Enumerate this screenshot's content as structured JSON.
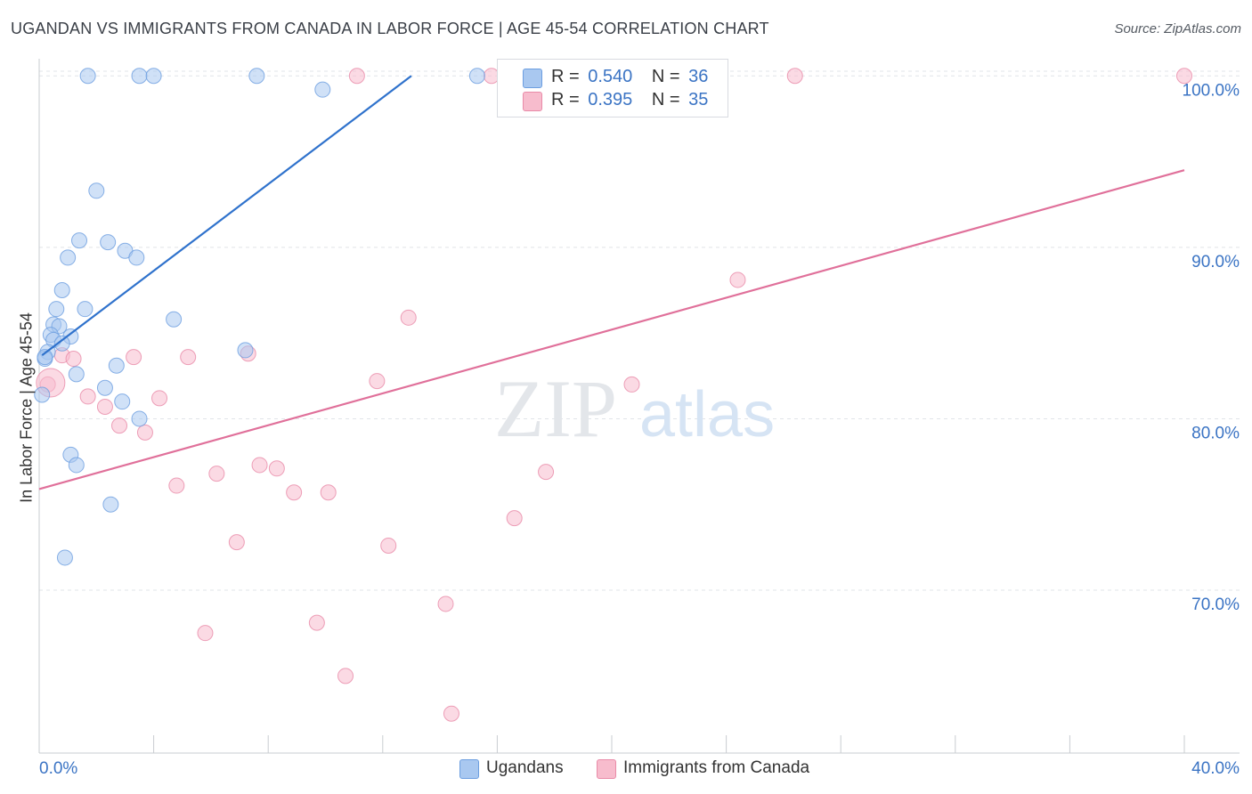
{
  "title": "UGANDAN VS IMMIGRANTS FROM CANADA IN LABOR FORCE | AGE 45-54 CORRELATION CHART",
  "source": "Source: ZipAtlas.com",
  "watermark": {
    "zip": "ZIP",
    "atlas": "atlas"
  },
  "legend": {
    "rows": [
      {
        "r_label": "R =",
        "r_value": "0.540",
        "n_label": "N =",
        "n_value": "36",
        "color": "#a9c8f0",
        "stroke": "#6c9ee0"
      },
      {
        "r_label": "R =",
        "r_value": "0.395",
        "n_label": "N =",
        "n_value": "35",
        "color": "#f7bccd",
        "stroke": "#e98aa8"
      }
    ]
  },
  "bottom_legend": [
    {
      "label": "Ugandans",
      "color": "#a9c8f0",
      "stroke": "#6c9ee0"
    },
    {
      "label": "Immigrants from Canada",
      "color": "#f7bccd",
      "stroke": "#e98aa8"
    }
  ],
  "chart_data": {
    "type": "scatter",
    "title": "UGANDAN VS IMMIGRANTS FROM CANADA IN LABOR FORCE | AGE 45-54 CORRELATION CHART",
    "xlabel": "",
    "ylabel": "In Labor Force | Age 45-54",
    "xlim": [
      0,
      40
    ],
    "ylim": [
      60.5,
      101
    ],
    "x_tick_labels": [
      "0.0%",
      "40.0%"
    ],
    "y_ticks": [
      70,
      80,
      90,
      100
    ],
    "y_tick_labels": [
      "70.0%",
      "80.0%",
      "90.0%",
      "100.0%"
    ],
    "grid": true,
    "legend_position": "top-center",
    "series": [
      {
        "name": "Ugandans",
        "color": "#a9c8f0",
        "line_color": "#2f72cc",
        "trend": {
          "x": [
            0.1,
            13.0
          ],
          "y": [
            83.7,
            100.0
          ]
        },
        "points": [
          {
            "x": 1.7,
            "y": 100.0
          },
          {
            "x": 3.5,
            "y": 100.0
          },
          {
            "x": 4.0,
            "y": 100.0
          },
          {
            "x": 7.6,
            "y": 100.0
          },
          {
            "x": 15.3,
            "y": 100.0
          },
          {
            "x": 9.9,
            "y": 99.2
          },
          {
            "x": 2.0,
            "y": 93.3
          },
          {
            "x": 1.4,
            "y": 90.4
          },
          {
            "x": 2.4,
            "y": 90.3
          },
          {
            "x": 3.0,
            "y": 89.8
          },
          {
            "x": 3.4,
            "y": 89.4
          },
          {
            "x": 1.0,
            "y": 89.4
          },
          {
            "x": 0.8,
            "y": 87.5
          },
          {
            "x": 1.6,
            "y": 86.4
          },
          {
            "x": 0.6,
            "y": 86.4
          },
          {
            "x": 4.7,
            "y": 85.8
          },
          {
            "x": 0.5,
            "y": 85.5
          },
          {
            "x": 0.7,
            "y": 85.4
          },
          {
            "x": 0.4,
            "y": 84.9
          },
          {
            "x": 1.1,
            "y": 84.8
          },
          {
            "x": 0.5,
            "y": 84.6
          },
          {
            "x": 0.8,
            "y": 84.4
          },
          {
            "x": 7.2,
            "y": 84.0
          },
          {
            "x": 0.3,
            "y": 83.9
          },
          {
            "x": 0.2,
            "y": 83.5
          },
          {
            "x": 2.7,
            "y": 83.1
          },
          {
            "x": 1.3,
            "y": 82.6
          },
          {
            "x": 2.3,
            "y": 81.8
          },
          {
            "x": 0.1,
            "y": 81.4
          },
          {
            "x": 2.9,
            "y": 81.0
          },
          {
            "x": 3.5,
            "y": 80.0
          },
          {
            "x": 1.1,
            "y": 77.9
          },
          {
            "x": 1.3,
            "y": 77.3
          },
          {
            "x": 2.5,
            "y": 75.0
          },
          {
            "x": 0.9,
            "y": 71.9
          },
          {
            "x": 0.2,
            "y": 83.6
          }
        ]
      },
      {
        "name": "Immigrants from Canada",
        "color": "#f7bccd",
        "line_color": "#e0709a",
        "trend": {
          "x": [
            0.0,
            40.0
          ],
          "y": [
            75.9,
            94.5
          ]
        },
        "points": [
          {
            "x": 11.1,
            "y": 100.0
          },
          {
            "x": 15.8,
            "y": 100.0
          },
          {
            "x": 26.4,
            "y": 100.0
          },
          {
            "x": 40.0,
            "y": 100.0
          },
          {
            "x": 24.4,
            "y": 88.1
          },
          {
            "x": 12.9,
            "y": 85.9
          },
          {
            "x": 0.8,
            "y": 83.7
          },
          {
            "x": 1.2,
            "y": 83.5
          },
          {
            "x": 3.3,
            "y": 83.6
          },
          {
            "x": 5.2,
            "y": 83.6
          },
          {
            "x": 7.3,
            "y": 83.8
          },
          {
            "x": 11.8,
            "y": 82.2
          },
          {
            "x": 20.7,
            "y": 82.0
          },
          {
            "x": 0.3,
            "y": 82.0
          },
          {
            "x": 1.7,
            "y": 81.3
          },
          {
            "x": 4.2,
            "y": 81.2
          },
          {
            "x": 2.3,
            "y": 80.7
          },
          {
            "x": 2.8,
            "y": 79.6
          },
          {
            "x": 3.7,
            "y": 79.2
          },
          {
            "x": 7.7,
            "y": 77.3
          },
          {
            "x": 8.3,
            "y": 77.1
          },
          {
            "x": 17.7,
            "y": 76.9
          },
          {
            "x": 6.2,
            "y": 76.8
          },
          {
            "x": 4.8,
            "y": 76.1
          },
          {
            "x": 8.9,
            "y": 75.7
          },
          {
            "x": 10.1,
            "y": 75.7
          },
          {
            "x": 16.6,
            "y": 74.2
          },
          {
            "x": 6.9,
            "y": 72.8
          },
          {
            "x": 12.2,
            "y": 72.6
          },
          {
            "x": 14.2,
            "y": 69.2
          },
          {
            "x": 9.7,
            "y": 68.1
          },
          {
            "x": 5.8,
            "y": 67.5
          },
          {
            "x": 10.7,
            "y": 65.0
          },
          {
            "x": 14.4,
            "y": 62.8
          },
          {
            "x": 0.4,
            "y": 82.1
          }
        ]
      }
    ]
  }
}
